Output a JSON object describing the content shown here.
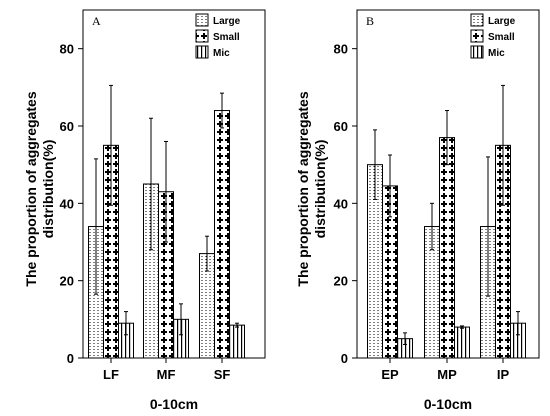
{
  "chart_data": [
    {
      "type": "bar",
      "panel_label": "A",
      "categories": [
        "LF",
        "MF",
        "SF"
      ],
      "ylabel_line1": "The proportion of aggregates",
      "ylabel_line2": "distribution(%)",
      "xlabel": "0-10cm",
      "ylim": [
        0,
        90
      ],
      "yticks": [
        0,
        20,
        40,
        60,
        80
      ],
      "legend_position": "top-right",
      "series": [
        {
          "name": "Large",
          "values": [
            34,
            45,
            27
          ],
          "errors": [
            17.5,
            17,
            4.5
          ],
          "pattern": "dots"
        },
        {
          "name": "Small",
          "values": [
            55,
            43,
            64
          ],
          "errors": [
            15.5,
            13,
            4.5
          ],
          "pattern": "cross"
        },
        {
          "name": "Mic",
          "values": [
            9,
            10,
            8.5
          ],
          "errors": [
            3,
            4,
            0.5
          ],
          "pattern": "vlines"
        }
      ]
    },
    {
      "type": "bar",
      "panel_label": "B",
      "categories": [
        "EP",
        "MP",
        "IP"
      ],
      "ylabel_line1": "The proportion of aggregates",
      "ylabel_line2": "distribution(%)",
      "xlabel": "0-10cm",
      "ylim": [
        0,
        90
      ],
      "yticks": [
        0,
        20,
        40,
        60,
        80
      ],
      "legend_position": "top-right",
      "series": [
        {
          "name": "Large",
          "values": [
            50,
            34,
            34
          ],
          "errors": [
            9,
            6,
            18
          ],
          "pattern": "dots"
        },
        {
          "name": "Small",
          "values": [
            44.5,
            57,
            55
          ],
          "errors": [
            8,
            7,
            15.5
          ],
          "pattern": "cross"
        },
        {
          "name": "Mic",
          "values": [
            5,
            8,
            9
          ],
          "errors": [
            1.5,
            0.3,
            3
          ],
          "pattern": "vlines"
        }
      ]
    }
  ]
}
